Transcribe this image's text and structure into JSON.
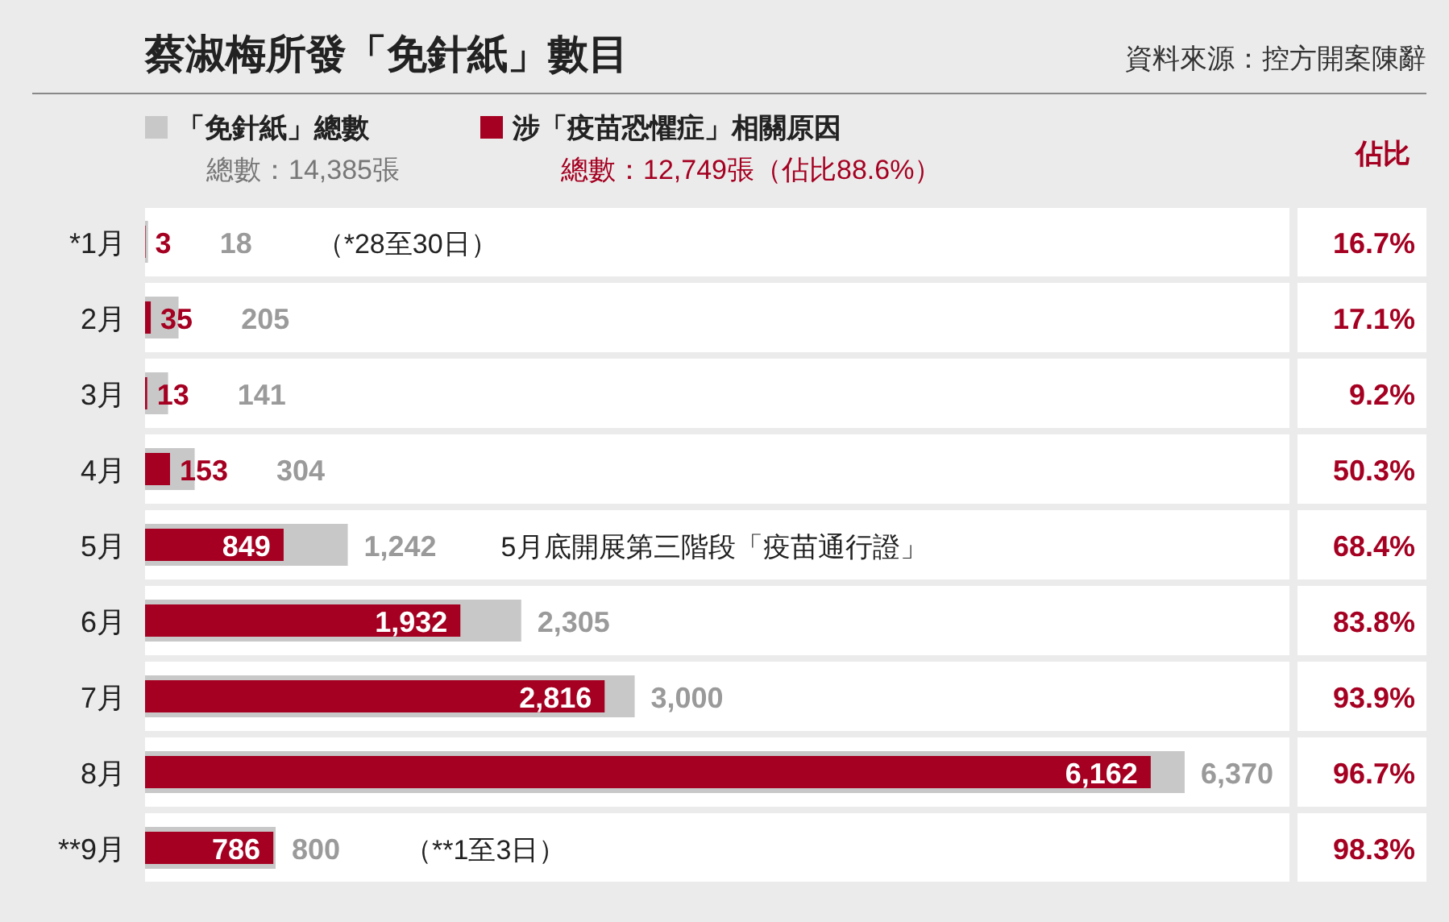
{
  "chart_data": {
    "type": "bar",
    "orientation": "horizontal",
    "title": "蔡淑梅所發「免針紙」數目",
    "categories": [
      "*1月",
      "2月",
      "3月",
      "4月",
      "5月",
      "6月",
      "7月",
      "8月",
      "**9月"
    ],
    "series": [
      {
        "name": "「免針紙」總數",
        "color": "#c8c8c8",
        "values": [
          18,
          205,
          141,
          304,
          1242,
          2305,
          3000,
          6370,
          800
        ],
        "value_labels": [
          "18",
          "205",
          "141",
          "304",
          "1,242",
          "2,305",
          "3,000",
          "6,370",
          "800"
        ]
      },
      {
        "name": "涉「疫苗恐懼症」相關原因",
        "color": "#a50021",
        "values": [
          3,
          35,
          13,
          153,
          849,
          1932,
          2816,
          6162,
          786
        ],
        "value_labels": [
          "3",
          "35",
          "13",
          "153",
          "849",
          "1,932",
          "2,816",
          "6,162",
          "786"
        ]
      }
    ],
    "legend": "top left",
    "annotations": [
      "資料來源：控方開案陳辭",
      "佔比",
      "總數：14,385張",
      "總數：12,749張（佔比88.6%）",
      "16.7%",
      "17.1%",
      "9.2%",
      "50.3%",
      "68.4%",
      "83.8%",
      "93.9%",
      "96.7%",
      "98.3%",
      "（*28至30日）",
      "5月底開展第三階段「疫苗通行證」",
      "（**1至3日）"
    ]
  }
}
